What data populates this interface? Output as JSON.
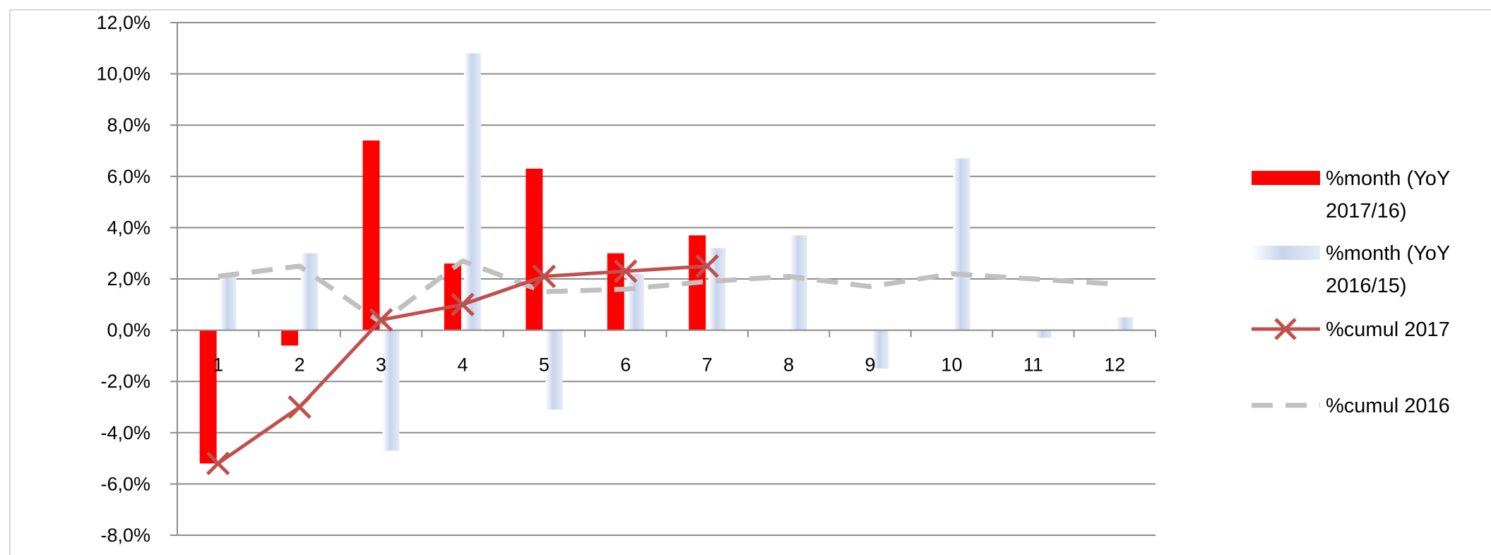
{
  "chart_data": {
    "type": "bar",
    "title": "",
    "xlabel": "",
    "ylabel": "",
    "categories": [
      "1",
      "2",
      "3",
      "4",
      "5",
      "6",
      "7",
      "8",
      "9",
      "10",
      "11",
      "12"
    ],
    "ylim": [
      -8.0,
      12.0
    ],
    "yticks": [
      12.0,
      10.0,
      8.0,
      6.0,
      4.0,
      2.0,
      0.0,
      -2.0,
      -4.0,
      -6.0,
      -8.0
    ],
    "ytick_labels": [
      "12,0%",
      "10,0%",
      "8,0%",
      "6,0%",
      "4,0%",
      "2,0%",
      "0,0%",
      "-2,0%",
      "-4,0%",
      "-6,0%",
      "-8,0%"
    ],
    "grid": true,
    "legend_position": "right",
    "series": [
      {
        "name": "%month (YoY 2017/16)",
        "kind": "bar",
        "color": "#ff0000",
        "values": [
          -5.2,
          -0.6,
          7.4,
          2.6,
          6.3,
          3.0,
          3.7,
          null,
          null,
          null,
          null,
          null
        ]
      },
      {
        "name": "%month (YoY 2016/15)",
        "kind": "bar",
        "color": "#c6d4ec",
        "values": [
          2.1,
          3.0,
          -4.7,
          10.8,
          -3.1,
          2.2,
          3.2,
          3.7,
          -1.5,
          6.7,
          -0.3,
          0.5
        ]
      },
      {
        "name": "%cumul 2017",
        "kind": "line",
        "color": "#c0504d",
        "marker": "x",
        "values": [
          -5.2,
          -3.0,
          0.4,
          1.0,
          2.1,
          2.3,
          2.5,
          null,
          null,
          null,
          null,
          null
        ]
      },
      {
        "name": "%cumul 2016",
        "kind": "line",
        "color": "#c0c0c0",
        "dash": true,
        "values": [
          2.1,
          2.5,
          0.3,
          2.7,
          1.5,
          1.6,
          1.9,
          2.1,
          1.7,
          2.2,
          2.0,
          1.8
        ]
      }
    ]
  },
  "legend": {
    "items": [
      {
        "lines": [
          "%month (YoY",
          "2017/16)"
        ]
      },
      {
        "lines": [
          "%month (YoY",
          "2016/15)"
        ]
      },
      {
        "lines": [
          "%cumul 2017"
        ]
      },
      {
        "lines": [
          "%cumul 2016"
        ]
      }
    ]
  }
}
